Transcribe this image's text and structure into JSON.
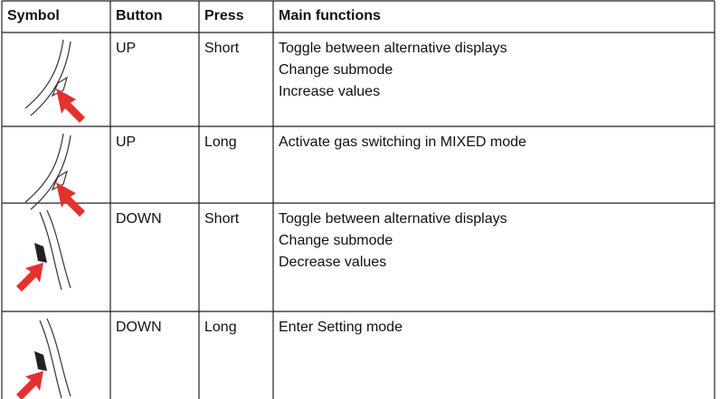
{
  "table": {
    "header": [
      "Symbol",
      "Button",
      "Press",
      "Main functions"
    ],
    "rows": [
      {
        "button": "UP",
        "press": "Short",
        "functions": [
          "Toggle between alternative displays",
          "Change submode",
          "Increase values"
        ]
      },
      {
        "button": "UP",
        "press": "Long",
        "functions": [
          "Activate gas switching in MIXED mode"
        ]
      },
      {
        "button": "DOWN",
        "press": "Short",
        "functions": [
          "Toggle between alternative displays",
          "Change submode",
          "Decrease values"
        ]
      },
      {
        "button": "DOWN",
        "press": "Long",
        "functions": [
          "Enter Setting mode"
        ]
      }
    ]
  }
}
